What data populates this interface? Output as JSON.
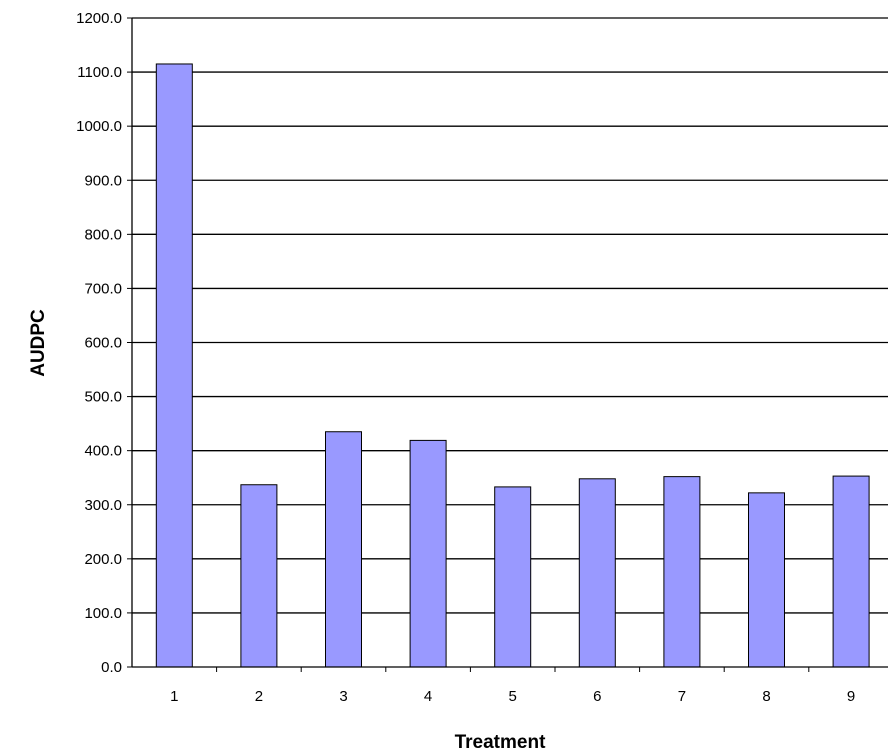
{
  "chart_data": {
    "type": "bar",
    "title": "",
    "xlabel": "Treatment",
    "ylabel": "AUDPC",
    "categories": [
      "1",
      "2",
      "3",
      "4",
      "5",
      "6",
      "7",
      "8",
      "9"
    ],
    "values": [
      1115.0,
      337.0,
      435.0,
      419.0,
      333.0,
      348.0,
      352.0,
      322.0,
      353.0
    ],
    "ylim": [
      0,
      1200
    ],
    "y_ticks": [
      "0.0",
      "100.0",
      "200.0",
      "300.0",
      "400.0",
      "500.0",
      "600.0",
      "700.0",
      "800.0",
      "900.0",
      "1000.0",
      "1100.0",
      "1200.0"
    ],
    "grid": true,
    "legend": "none",
    "colors": {
      "bar_fill": "#9999FF",
      "bar_stroke": "#000000",
      "gridline": "#000000",
      "background": "#FFFFFF"
    }
  }
}
